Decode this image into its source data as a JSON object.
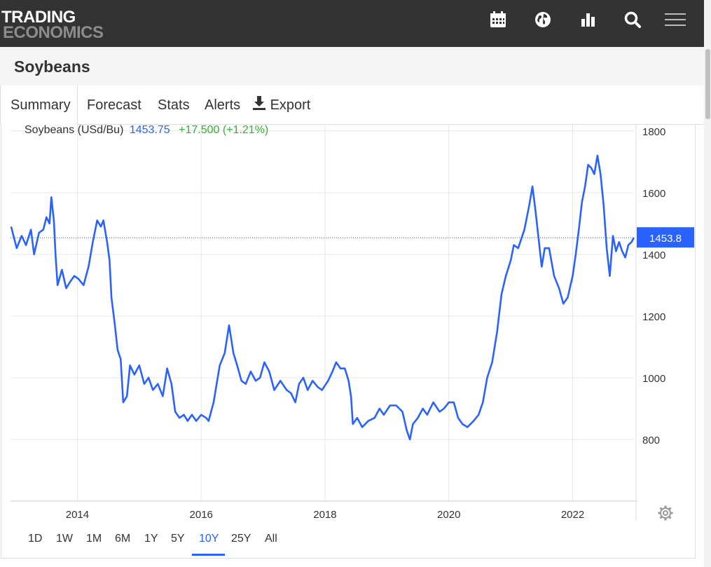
{
  "brand": {
    "line1": "TRADING",
    "line2": "ECONOMICS"
  },
  "toolbar_icons": [
    "calendar-icon",
    "globe-icon",
    "bar-chart-icon",
    "search-icon",
    "hamburger-menu-icon"
  ],
  "page": {
    "title": "Soybeans"
  },
  "tabs": [
    {
      "label": "Summary",
      "active": true
    },
    {
      "label": "Forecast"
    },
    {
      "label": "Stats"
    },
    {
      "label": "Alerts"
    },
    {
      "label": "Export",
      "icon": "download-icon"
    }
  ],
  "legend": {
    "name": "Soybeans (USd/Bu)",
    "price": "1453.75",
    "change": "+17.500 (+1.21%)"
  },
  "colors": {
    "line": "#2962ff",
    "positive": "#2db52d",
    "price": "#2962ff",
    "topbar": "#333333",
    "badge": "#2962ff"
  },
  "current_badge": "1453.8",
  "ranges": [
    "1D",
    "1W",
    "1M",
    "6M",
    "1Y",
    "5Y",
    "10Y",
    "25Y",
    "All"
  ],
  "active_range": "10Y",
  "chart_data": {
    "type": "line",
    "title": "",
    "xlabel": "",
    "ylabel": "",
    "x_ticks": [
      "2014",
      "2016",
      "2018",
      "2020",
      "2022"
    ],
    "y_ticks": [
      800,
      1000,
      1200,
      1400,
      1600,
      1800
    ],
    "ylim": [
      600,
      1820
    ],
    "xlim": [
      2012.92,
      2022.99
    ],
    "grid": true,
    "legend_position": "top-left",
    "current_value": 1453.75,
    "series": [
      {
        "name": "Soybeans (USd/Bu)",
        "points": [
          [
            2012.93,
            1490
          ],
          [
            2013.02,
            1420
          ],
          [
            2013.1,
            1460
          ],
          [
            2013.17,
            1430
          ],
          [
            2013.25,
            1480
          ],
          [
            2013.3,
            1400
          ],
          [
            2013.38,
            1470
          ],
          [
            2013.45,
            1480
          ],
          [
            2013.5,
            1520
          ],
          [
            2013.55,
            1500
          ],
          [
            2013.58,
            1585
          ],
          [
            2013.62,
            1510
          ],
          [
            2013.65,
            1390
          ],
          [
            2013.68,
            1300
          ],
          [
            2013.75,
            1350
          ],
          [
            2013.82,
            1290
          ],
          [
            2013.88,
            1310
          ],
          [
            2013.95,
            1330
          ],
          [
            2014.02,
            1320
          ],
          [
            2014.1,
            1300
          ],
          [
            2014.18,
            1360
          ],
          [
            2014.25,
            1440
          ],
          [
            2014.32,
            1510
          ],
          [
            2014.38,
            1490
          ],
          [
            2014.42,
            1510
          ],
          [
            2014.48,
            1440
          ],
          [
            2014.52,
            1380
          ],
          [
            2014.55,
            1260
          ],
          [
            2014.6,
            1180
          ],
          [
            2014.65,
            1090
          ],
          [
            2014.7,
            1060
          ],
          [
            2014.74,
            920
          ],
          [
            2014.8,
            940
          ],
          [
            2014.85,
            1040
          ],
          [
            2014.92,
            1010
          ],
          [
            2015.0,
            1040
          ],
          [
            2015.08,
            980
          ],
          [
            2015.15,
            1000
          ],
          [
            2015.22,
            960
          ],
          [
            2015.3,
            980
          ],
          [
            2015.38,
            940
          ],
          [
            2015.45,
            1030
          ],
          [
            2015.52,
            980
          ],
          [
            2015.58,
            890
          ],
          [
            2015.65,
            870
          ],
          [
            2015.72,
            880
          ],
          [
            2015.78,
            860
          ],
          [
            2015.85,
            880
          ],
          [
            2015.92,
            860
          ],
          [
            2016.0,
            880
          ],
          [
            2016.08,
            870
          ],
          [
            2016.12,
            860
          ],
          [
            2016.2,
            920
          ],
          [
            2016.3,
            1040
          ],
          [
            2016.38,
            1080
          ],
          [
            2016.45,
            1170
          ],
          [
            2016.52,
            1080
          ],
          [
            2016.58,
            1040
          ],
          [
            2016.65,
            990
          ],
          [
            2016.72,
            980
          ],
          [
            2016.8,
            1020
          ],
          [
            2016.88,
            990
          ],
          [
            2016.95,
            1000
          ],
          [
            2017.02,
            1050
          ],
          [
            2017.1,
            1020
          ],
          [
            2017.18,
            960
          ],
          [
            2017.28,
            990
          ],
          [
            2017.38,
            960
          ],
          [
            2017.45,
            950
          ],
          [
            2017.52,
            920
          ],
          [
            2017.58,
            980
          ],
          [
            2017.65,
            1000
          ],
          [
            2017.72,
            960
          ],
          [
            2017.8,
            990
          ],
          [
            2017.88,
            970
          ],
          [
            2017.95,
            960
          ],
          [
            2018.05,
            990
          ],
          [
            2018.12,
            1020
          ],
          [
            2018.18,
            1050
          ],
          [
            2018.25,
            1030
          ],
          [
            2018.32,
            1030
          ],
          [
            2018.38,
            990
          ],
          [
            2018.42,
            940
          ],
          [
            2018.45,
            850
          ],
          [
            2018.52,
            870
          ],
          [
            2018.6,
            840
          ],
          [
            2018.7,
            860
          ],
          [
            2018.8,
            870
          ],
          [
            2018.88,
            900
          ],
          [
            2018.95,
            880
          ],
          [
            2019.05,
            910
          ],
          [
            2019.15,
            910
          ],
          [
            2019.25,
            890
          ],
          [
            2019.32,
            830
          ],
          [
            2019.37,
            800
          ],
          [
            2019.42,
            850
          ],
          [
            2019.5,
            870
          ],
          [
            2019.58,
            900
          ],
          [
            2019.65,
            880
          ],
          [
            2019.75,
            920
          ],
          [
            2019.85,
            890
          ],
          [
            2019.92,
            900
          ],
          [
            2020.0,
            920
          ],
          [
            2020.08,
            920
          ],
          [
            2020.15,
            870
          ],
          [
            2020.22,
            850
          ],
          [
            2020.3,
            840
          ],
          [
            2020.4,
            860
          ],
          [
            2020.48,
            880
          ],
          [
            2020.55,
            920
          ],
          [
            2020.62,
            1000
          ],
          [
            2020.7,
            1050
          ],
          [
            2020.78,
            1150
          ],
          [
            2020.85,
            1270
          ],
          [
            2020.92,
            1330
          ],
          [
            2021.0,
            1380
          ],
          [
            2021.05,
            1430
          ],
          [
            2021.12,
            1420
          ],
          [
            2021.22,
            1480
          ],
          [
            2021.3,
            1560
          ],
          [
            2021.35,
            1620
          ],
          [
            2021.4,
            1540
          ],
          [
            2021.45,
            1450
          ],
          [
            2021.5,
            1360
          ],
          [
            2021.55,
            1420
          ],
          [
            2021.62,
            1420
          ],
          [
            2021.7,
            1330
          ],
          [
            2021.78,
            1290
          ],
          [
            2021.85,
            1240
          ],
          [
            2021.92,
            1260
          ],
          [
            2022.0,
            1330
          ],
          [
            2022.05,
            1400
          ],
          [
            2022.1,
            1480
          ],
          [
            2022.15,
            1570
          ],
          [
            2022.2,
            1620
          ],
          [
            2022.25,
            1690
          ],
          [
            2022.3,
            1680
          ],
          [
            2022.35,
            1660
          ],
          [
            2022.4,
            1720
          ],
          [
            2022.45,
            1660
          ],
          [
            2022.5,
            1560
          ],
          [
            2022.55,
            1420
          ],
          [
            2022.6,
            1330
          ],
          [
            2022.65,
            1460
          ],
          [
            2022.7,
            1410
          ],
          [
            2022.75,
            1440
          ],
          [
            2022.8,
            1410
          ],
          [
            2022.85,
            1390
          ],
          [
            2022.9,
            1430
          ],
          [
            2022.95,
            1440
          ],
          [
            2022.99,
            1454
          ]
        ]
      }
    ]
  }
}
